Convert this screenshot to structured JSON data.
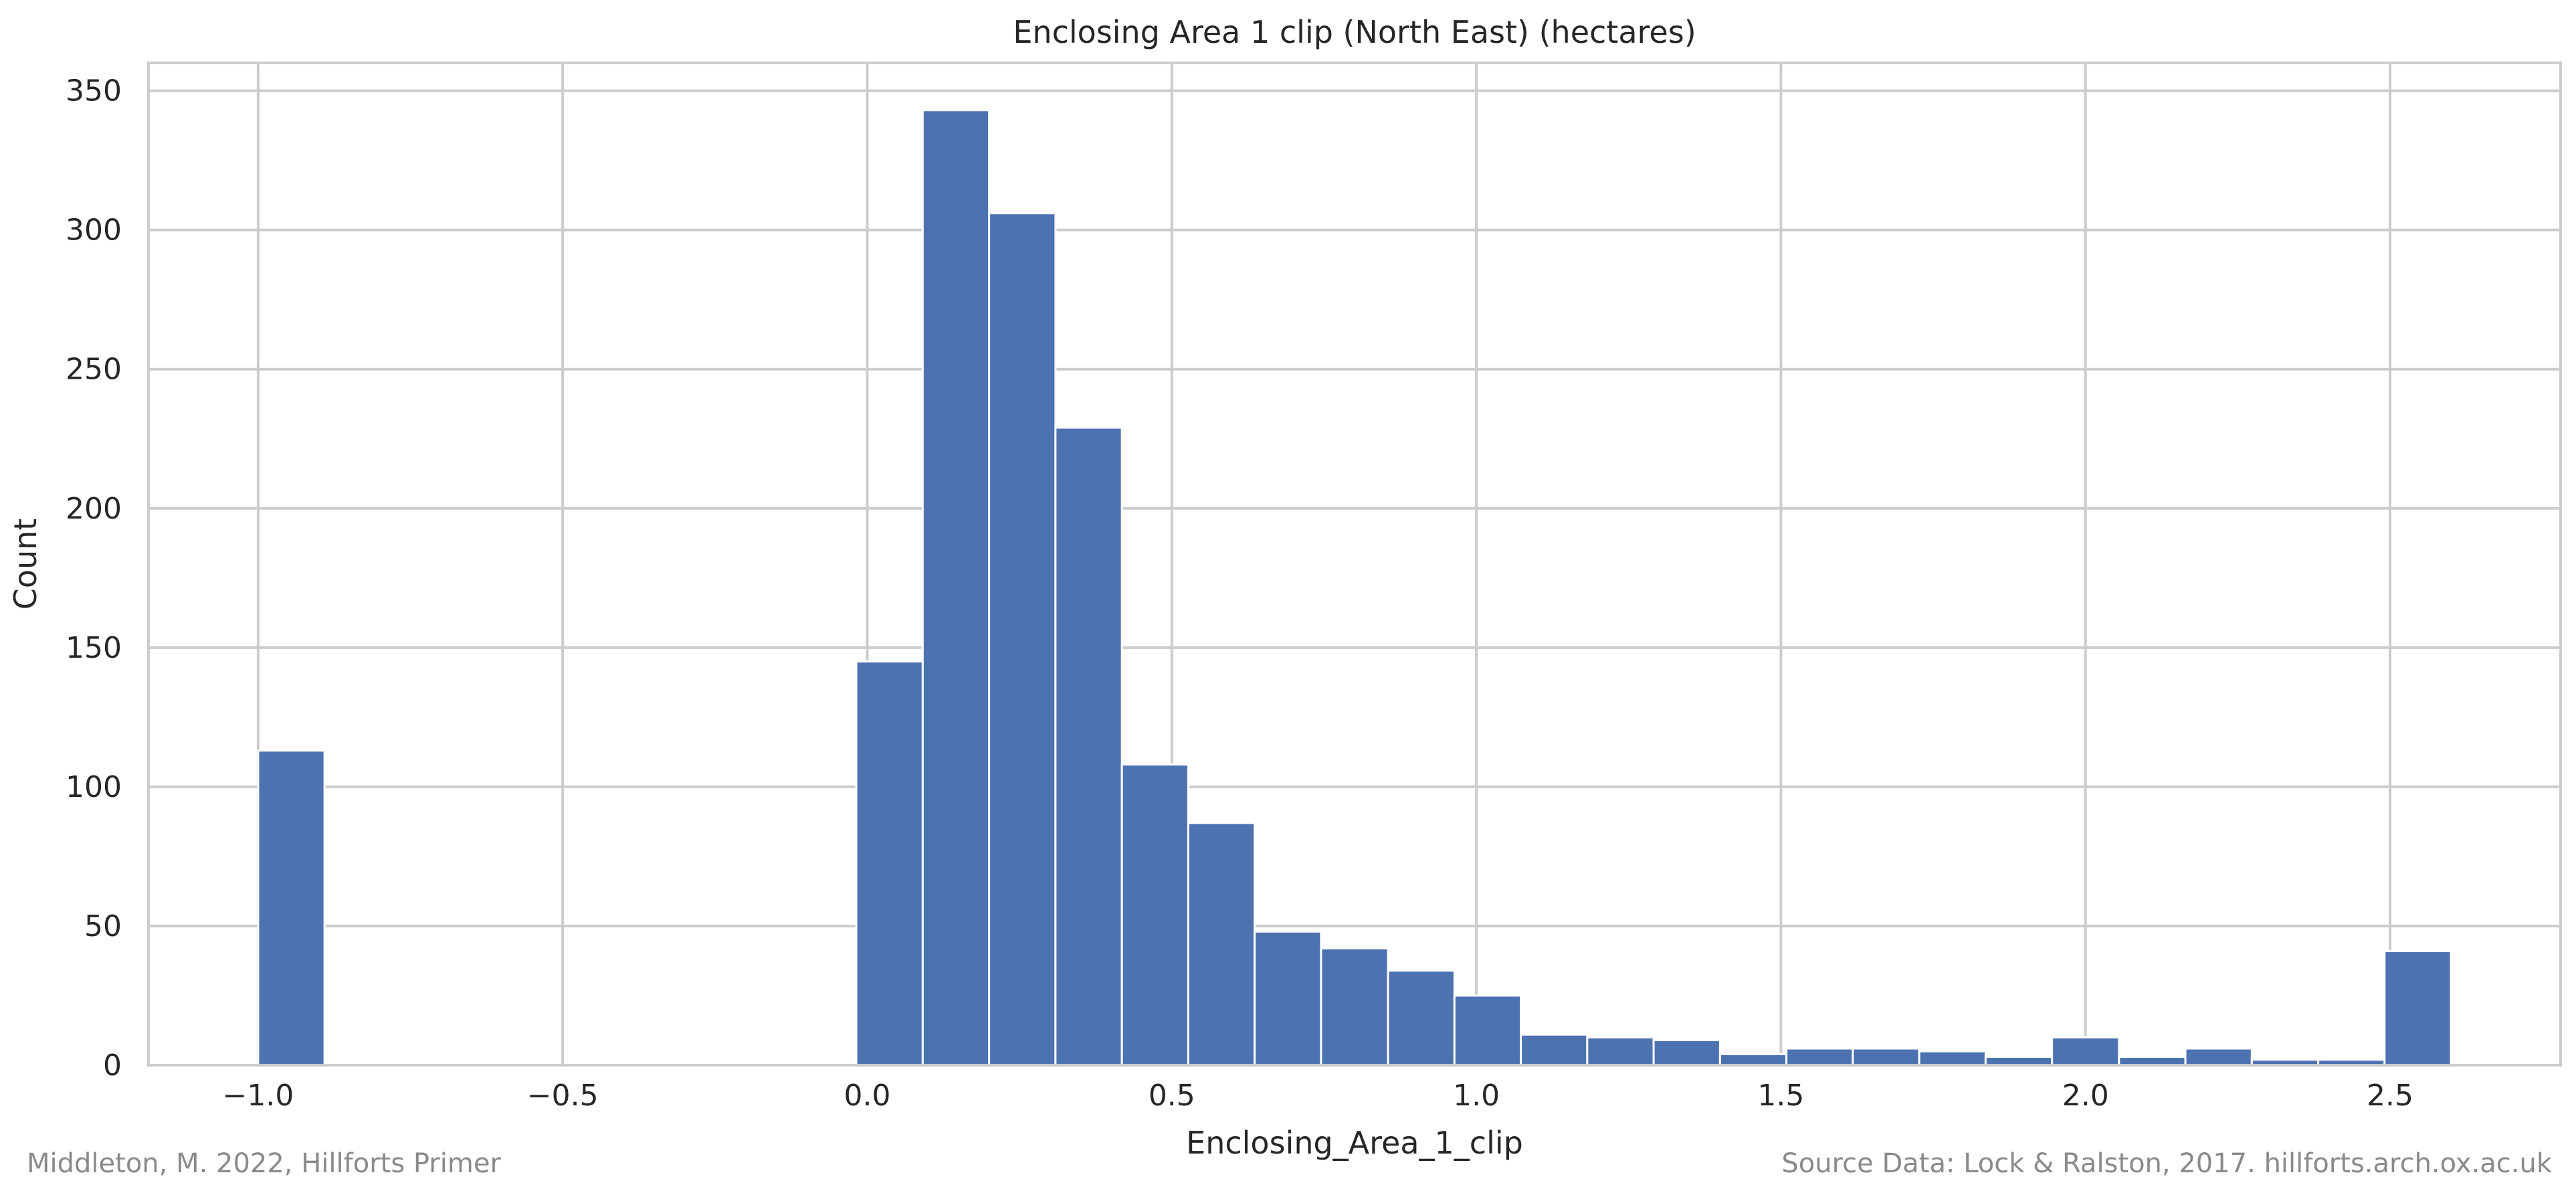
{
  "chart_data": {
    "type": "bar",
    "title": "Enclosing Area 1 clip (North East) (hectares)",
    "xlabel": "Enclosing_Area_1_clip",
    "ylabel": "Count",
    "xlim": [
      -1.18,
      2.78
    ],
    "ylim": [
      0,
      360
    ],
    "x_ticks": [
      -1.0,
      -0.5,
      0.0,
      0.5,
      1.0,
      1.5,
      2.0,
      2.5
    ],
    "x_tick_labels": [
      "−1.0",
      "−0.5",
      "0.0",
      "0.5",
      "1.0",
      "1.5",
      "2.0",
      "2.5"
    ],
    "y_ticks": [
      0,
      50,
      100,
      150,
      200,
      250,
      300,
      350
    ],
    "y_tick_labels": [
      "0",
      "50",
      "100",
      "150",
      "200",
      "250",
      "300",
      "350"
    ],
    "grid": true,
    "bar_color": "#4c72b0",
    "bins": [
      {
        "x0": -1.0,
        "x1": -0.891,
        "count": 113
      },
      {
        "x0": -0.891,
        "x1": -0.782,
        "count": 0
      },
      {
        "x0": -0.782,
        "x1": -0.673,
        "count": 0
      },
      {
        "x0": -0.673,
        "x1": -0.564,
        "count": 0
      },
      {
        "x0": -0.564,
        "x1": -0.455,
        "count": 0
      },
      {
        "x0": -0.455,
        "x1": -0.345,
        "count": 0
      },
      {
        "x0": -0.345,
        "x1": -0.236,
        "count": 0
      },
      {
        "x0": -0.236,
        "x1": -0.127,
        "count": 0
      },
      {
        "x0": -0.127,
        "x1": -0.018,
        "count": 0
      },
      {
        "x0": -0.018,
        "x1": 0.091,
        "count": 145
      },
      {
        "x0": 0.091,
        "x1": 0.2,
        "count": 343
      },
      {
        "x0": 0.2,
        "x1": 0.309,
        "count": 306
      },
      {
        "x0": 0.309,
        "x1": 0.418,
        "count": 229
      },
      {
        "x0": 0.418,
        "x1": 0.527,
        "count": 108
      },
      {
        "x0": 0.527,
        "x1": 0.636,
        "count": 87
      },
      {
        "x0": 0.636,
        "x1": 0.745,
        "count": 48
      },
      {
        "x0": 0.745,
        "x1": 0.855,
        "count": 42
      },
      {
        "x0": 0.855,
        "x1": 0.964,
        "count": 34
      },
      {
        "x0": 0.964,
        "x1": 1.073,
        "count": 25
      },
      {
        "x0": 1.073,
        "x1": 1.182,
        "count": 11
      },
      {
        "x0": 1.182,
        "x1": 1.291,
        "count": 10
      },
      {
        "x0": 1.291,
        "x1": 1.4,
        "count": 9
      },
      {
        "x0": 1.4,
        "x1": 1.509,
        "count": 4
      },
      {
        "x0": 1.509,
        "x1": 1.618,
        "count": 6
      },
      {
        "x0": 1.618,
        "x1": 1.727,
        "count": 6
      },
      {
        "x0": 1.727,
        "x1": 1.836,
        "count": 5
      },
      {
        "x0": 1.836,
        "x1": 1.945,
        "count": 3
      },
      {
        "x0": 1.945,
        "x1": 2.055,
        "count": 10
      },
      {
        "x0": 2.055,
        "x1": 2.164,
        "count": 3
      },
      {
        "x0": 2.164,
        "x1": 2.273,
        "count": 6
      },
      {
        "x0": 2.273,
        "x1": 2.382,
        "count": 2
      },
      {
        "x0": 2.382,
        "x1": 2.491,
        "count": 2
      },
      {
        "x0": 2.491,
        "x1": 2.6,
        "count": 41
      }
    ]
  },
  "footer": {
    "credit_left": "Middleton, M. 2022, Hillforts Primer",
    "credit_right": "Source Data: Lock & Ralston, 2017. hillforts.arch.ox.ac.uk"
  }
}
